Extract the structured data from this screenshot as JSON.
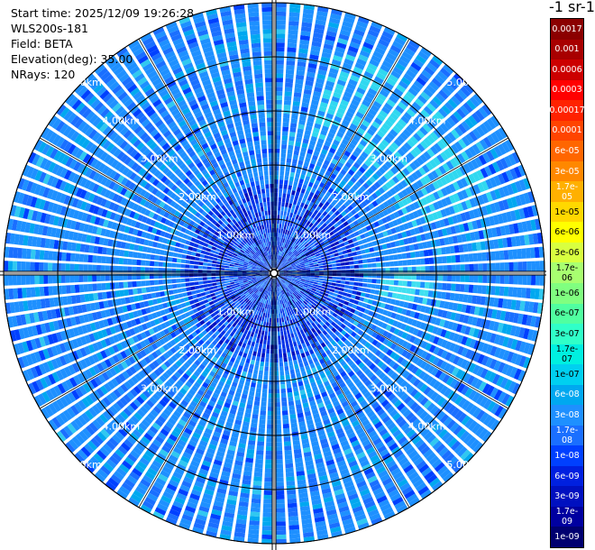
{
  "info": {
    "start_time": "Start time: 2025/12/09 19:26:28",
    "instrument": "WLS200s-181",
    "field": "Field: BETA",
    "elevation": "Elevation(deg): 35.00",
    "nrays": "NRays: 120"
  },
  "colorbar_title": "-1 sr-1",
  "chart_data": {
    "type": "heatmap",
    "projection": "polar-ppi",
    "n_rays": 120,
    "range_rings_km": [
      1,
      2,
      3,
      4,
      5
    ],
    "ring_labels": [
      "1.00km",
      "2.00km",
      "3.00km",
      "4.00km",
      "5.00km"
    ],
    "max_range_km": 5,
    "colorbar_labels_top_to_bottom": [
      "0.0017",
      "0.001",
      "0.0006",
      "0.0003",
      "0.00017",
      "0.0001",
      "6e-05",
      "3e-05",
      "1.7e-05",
      "1e-05",
      "6e-06",
      "3e-06",
      "1.7e-06",
      "1e-06",
      "6e-07",
      "3e-07",
      "1.7e-07",
      "1e-07",
      "6e-08",
      "3e-08",
      "1.7e-08",
      "1e-08",
      "6e-09",
      "3e-09",
      "1.7e-09",
      "1e-09"
    ],
    "colorbar_colors_top_to_bottom": [
      "#8b0000",
      "#a80000",
      "#cc0000",
      "#ff0000",
      "#ff2200",
      "#ff4400",
      "#ff6600",
      "#ff8800",
      "#ffb000",
      "#ffd800",
      "#ffff00",
      "#d8ff40",
      "#a8ff70",
      "#80ff80",
      "#50ffa0",
      "#30ffc8",
      "#00f0e0",
      "#00d0f0",
      "#00a8f0",
      "#1e90ff",
      "#1a6fff",
      "#0040ff",
      "#0020e0",
      "#0010c0",
      "#0000a0",
      "#000070"
    ],
    "field_colors": [
      "#1e90ff",
      "#1a6fff",
      "#0040ff",
      "#00a8f0",
      "#30ffc8"
    ]
  }
}
